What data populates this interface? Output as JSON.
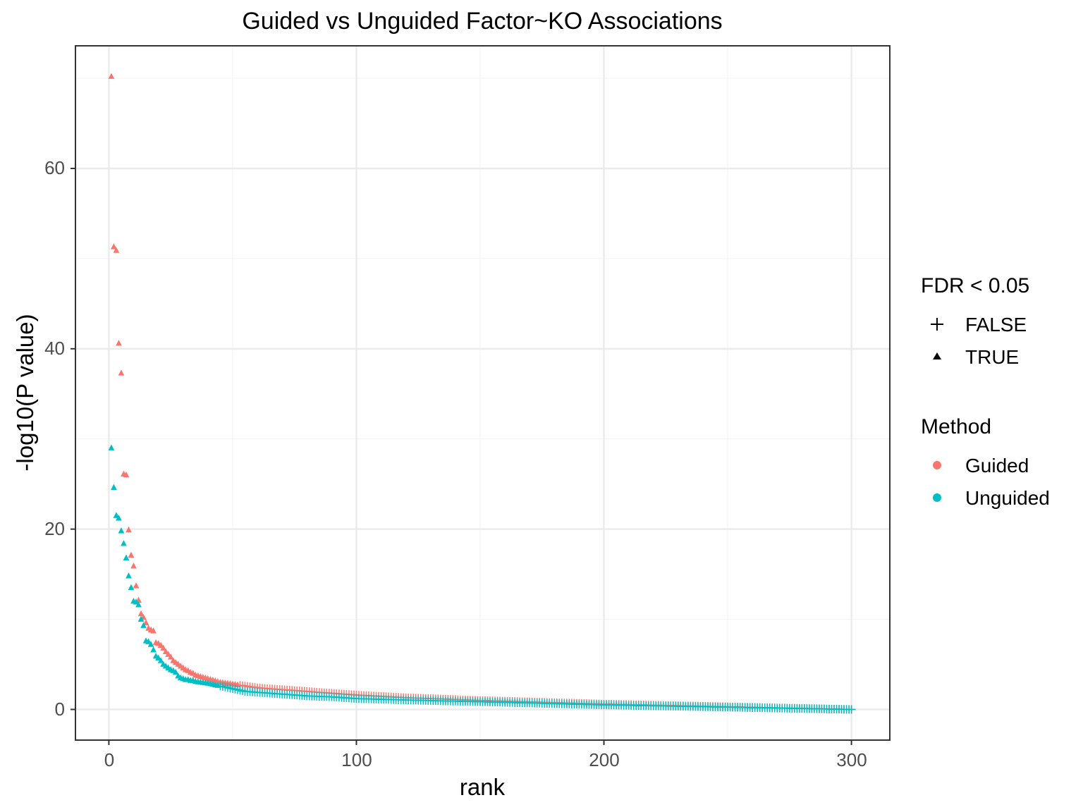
{
  "chart_data": {
    "type": "scatter",
    "title": "Guided vs Unguided Factor~KO Associations",
    "xlabel": "rank",
    "ylabel": "-log10(P value)",
    "xlim": [
      -13.5,
      315.5
    ],
    "ylim": [
      -3.4,
      73.6
    ],
    "x_ticks": [
      "0",
      "100",
      "200",
      "300"
    ],
    "y_ticks": [
      "0",
      "20",
      "40",
      "60"
    ],
    "grid": true,
    "legend_position": "right",
    "legends": [
      {
        "title": "FDR < 0.05",
        "entries": [
          {
            "label": "FALSE",
            "shape": "plus"
          },
          {
            "label": "TRUE",
            "shape": "triangle"
          }
        ]
      },
      {
        "title": "Method",
        "entries": [
          {
            "label": "Guided",
            "color": "#F8766D"
          },
          {
            "label": "Unguided",
            "color": "#00BFC4"
          }
        ]
      }
    ],
    "fdr_true_max_rank": {
      "Guided": 52,
      "Unguided": 44
    },
    "series": [
      {
        "name": "Guided",
        "color": "#F8766D",
        "n_points": 300,
        "points": [
          [
            1,
            70.2
          ],
          [
            2,
            51.3
          ],
          [
            3,
            50.9
          ],
          [
            4,
            40.6
          ],
          [
            5,
            37.3
          ],
          [
            6,
            26.1
          ],
          [
            7,
            26.0
          ],
          [
            8,
            19.9
          ],
          [
            9,
            17.1
          ],
          [
            10,
            15.9
          ],
          [
            11,
            13.7
          ],
          [
            12,
            12.1
          ],
          [
            13,
            10.6
          ],
          [
            14,
            10.2
          ],
          [
            15,
            9.6
          ],
          [
            16,
            9.0
          ],
          [
            17,
            8.8
          ],
          [
            18,
            8.7
          ],
          [
            19,
            7.4
          ],
          [
            20,
            7.3
          ],
          [
            21,
            7.1
          ],
          [
            22,
            6.8
          ],
          [
            23,
            6.4
          ],
          [
            24,
            6.1
          ],
          [
            25,
            5.8
          ],
          [
            26,
            5.4
          ],
          [
            27,
            5.2
          ],
          [
            28,
            5.0
          ],
          [
            29,
            4.8
          ],
          [
            30,
            4.6
          ],
          [
            31,
            4.4
          ],
          [
            32,
            4.3
          ],
          [
            33,
            4.1
          ],
          [
            34,
            4.0
          ],
          [
            35,
            3.8
          ],
          [
            40,
            3.4
          ],
          [
            45,
            3.0
          ],
          [
            50,
            2.8
          ],
          [
            55,
            2.6
          ],
          [
            60,
            2.4
          ],
          [
            70,
            2.2
          ],
          [
            80,
            2.0
          ],
          [
            90,
            1.8
          ],
          [
            100,
            1.6
          ],
          [
            120,
            1.3
          ],
          [
            150,
            1.0
          ],
          [
            200,
            0.6
          ],
          [
            250,
            0.3
          ],
          [
            300,
            0.0
          ]
        ]
      },
      {
        "name": "Unguided",
        "color": "#00BFC4",
        "n_points": 300,
        "points": [
          [
            1,
            29.0
          ],
          [
            2,
            24.6
          ],
          [
            3,
            21.5
          ],
          [
            4,
            21.2
          ],
          [
            5,
            19.8
          ],
          [
            6,
            18.4
          ],
          [
            7,
            16.8
          ],
          [
            8,
            14.8
          ],
          [
            9,
            13.5
          ],
          [
            10,
            12.0
          ],
          [
            11,
            11.9
          ],
          [
            12,
            11.6
          ],
          [
            13,
            10.0
          ],
          [
            14,
            9.3
          ],
          [
            15,
            7.6
          ],
          [
            16,
            7.5
          ],
          [
            17,
            7.2
          ],
          [
            18,
            6.6
          ],
          [
            19,
            5.9
          ],
          [
            20,
            5.7
          ],
          [
            21,
            5.4
          ],
          [
            22,
            5.0
          ],
          [
            23,
            4.8
          ],
          [
            24,
            4.6
          ],
          [
            25,
            4.4
          ],
          [
            26,
            4.3
          ],
          [
            27,
            4.1
          ],
          [
            28,
            3.7
          ],
          [
            29,
            3.5
          ],
          [
            30,
            3.4
          ],
          [
            31,
            3.3
          ],
          [
            32,
            3.3
          ],
          [
            33,
            3.2
          ],
          [
            34,
            3.2
          ],
          [
            35,
            3.1
          ],
          [
            40,
            2.9
          ],
          [
            45,
            2.6
          ],
          [
            50,
            2.3
          ],
          [
            55,
            2.0
          ],
          [
            60,
            1.9
          ],
          [
            70,
            1.7
          ],
          [
            80,
            1.5
          ],
          [
            90,
            1.4
          ],
          [
            100,
            1.2
          ],
          [
            120,
            1.05
          ],
          [
            150,
            0.85
          ],
          [
            200,
            0.5
          ],
          [
            250,
            0.25
          ],
          [
            300,
            0.0
          ]
        ]
      }
    ]
  }
}
